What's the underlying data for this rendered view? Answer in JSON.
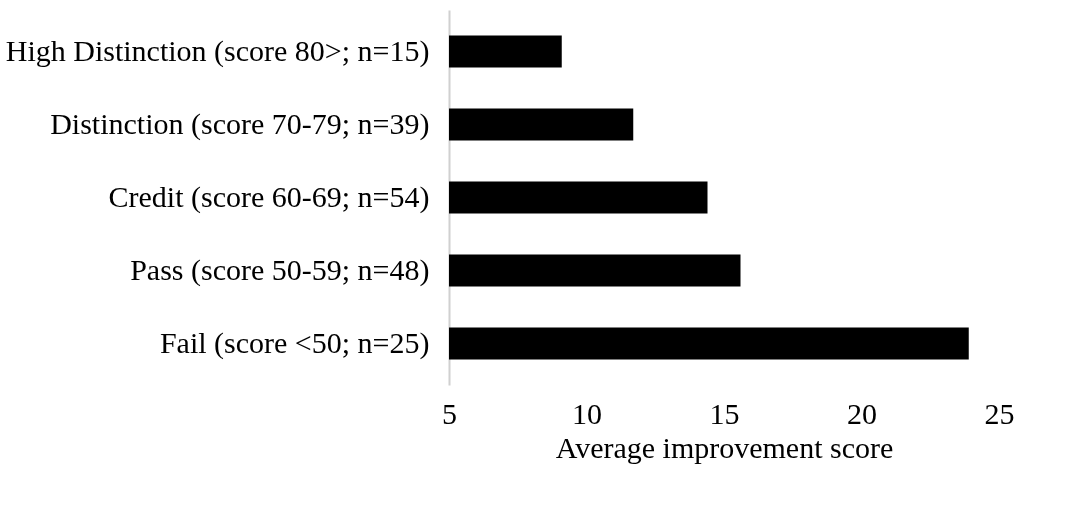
{
  "chart_data": {
    "type": "bar",
    "orientation": "horizontal",
    "categories": [
      "High Distinction (score 80>; n=15)",
      "Distinction (score 70-79; n=39)",
      "Credit (score 60-69; n=54)",
      "Pass (score 50-59; n=48)",
      "Fail (score <50; n=25)"
    ],
    "values": [
      9.1,
      11.7,
      14.4,
      15.6,
      23.9
    ],
    "color": "#000000",
    "xlabel": "Average improvement score",
    "xlim": [
      5,
      25
    ],
    "xticks": [
      5,
      10,
      15,
      20,
      25
    ],
    "grid": false
  }
}
